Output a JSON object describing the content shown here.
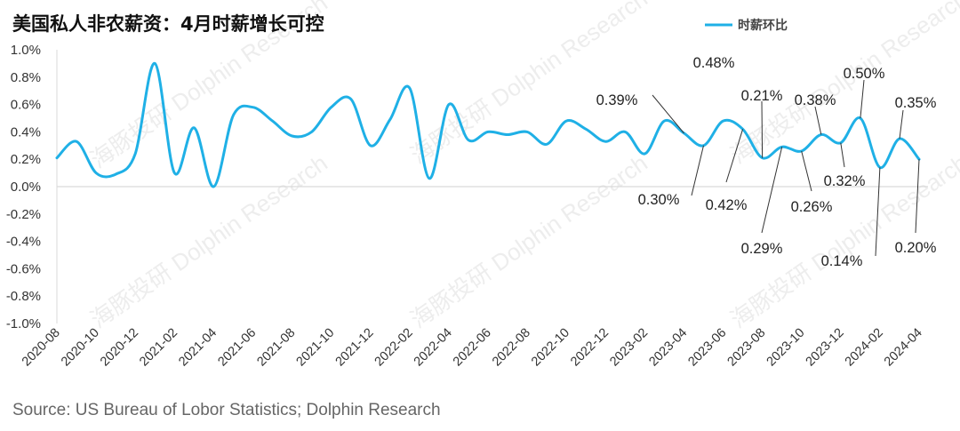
{
  "chart_data": {
    "type": "line",
    "title": "美国私人非农薪资：4月时薪增长可控",
    "legend": [
      "时薪环比"
    ],
    "legend_position": "top-right",
    "source": "Source: US Bureau of Lobor Statistics; Dolphin Research",
    "ylim": [
      -1.0,
      1.0
    ],
    "y_ticks": [
      "1.0%",
      "0.8%",
      "0.6%",
      "0.4%",
      "0.2%",
      "0.0%",
      "-0.2%",
      "-0.4%",
      "-0.6%",
      "-0.8%",
      "-1.0%"
    ],
    "x_tick_labels": [
      "2020-08",
      "2020-10",
      "2020-12",
      "2021-02",
      "2021-04",
      "2021-06",
      "2021-08",
      "2021-10",
      "2021-12",
      "2022-02",
      "2022-04",
      "2022-06",
      "2022-08",
      "2022-10",
      "2022-12",
      "2023-02",
      "2023-04",
      "2023-06",
      "2023-08",
      "2023-10",
      "2023-12",
      "2024-02",
      "2024-04"
    ],
    "series": [
      {
        "name": "时薪环比",
        "color": "#1fb0e6",
        "x": [
          "2020-08",
          "2020-09",
          "2020-10",
          "2020-11",
          "2020-12",
          "2021-01",
          "2021-02",
          "2021-03",
          "2021-04",
          "2021-05",
          "2021-06",
          "2021-07",
          "2021-08",
          "2021-09",
          "2021-10",
          "2021-11",
          "2021-12",
          "2022-01",
          "2022-02",
          "2022-03",
          "2022-04",
          "2022-05",
          "2022-06",
          "2022-07",
          "2022-08",
          "2022-09",
          "2022-10",
          "2022-11",
          "2022-12",
          "2023-01",
          "2023-02",
          "2023-03",
          "2023-04",
          "2023-05",
          "2023-06",
          "2023-07",
          "2023-08",
          "2023-09",
          "2023-10",
          "2023-11",
          "2023-12",
          "2024-01",
          "2024-02",
          "2024-03",
          "2024-04"
        ],
        "values": [
          0.21,
          0.33,
          0.1,
          0.09,
          0.24,
          0.9,
          0.1,
          0.43,
          0.0,
          0.52,
          0.58,
          0.48,
          0.37,
          0.4,
          0.58,
          0.64,
          0.3,
          0.49,
          0.72,
          0.06,
          0.6,
          0.34,
          0.4,
          0.38,
          0.4,
          0.31,
          0.48,
          0.42,
          0.33,
          0.4,
          0.24,
          0.48,
          0.39,
          0.3,
          0.48,
          0.42,
          0.21,
          0.29,
          0.26,
          0.38,
          0.32,
          0.5,
          0.14,
          0.35,
          0.2
        ]
      }
    ],
    "annotations": [
      {
        "x": "2023-04",
        "label": "0.39%"
      },
      {
        "x": "2023-05",
        "label": "0.30%"
      },
      {
        "x": "2023-06",
        "label": "0.48%"
      },
      {
        "x": "2023-07",
        "label": "0.42%"
      },
      {
        "x": "2023-08",
        "label": "0.21%"
      },
      {
        "x": "2023-09",
        "label": "0.29%"
      },
      {
        "x": "2023-10",
        "label": "0.26%"
      },
      {
        "x": "2023-11",
        "label": "0.38%"
      },
      {
        "x": "2023-12",
        "label": "0.32%"
      },
      {
        "x": "2024-01",
        "label": "0.50%"
      },
      {
        "x": "2024-02",
        "label": "0.14%"
      },
      {
        "x": "2024-03",
        "label": "0.35%"
      },
      {
        "x": "2024-04",
        "label": "0.20%"
      }
    ],
    "watermark": "海豚投研 Dolphin Research"
  }
}
